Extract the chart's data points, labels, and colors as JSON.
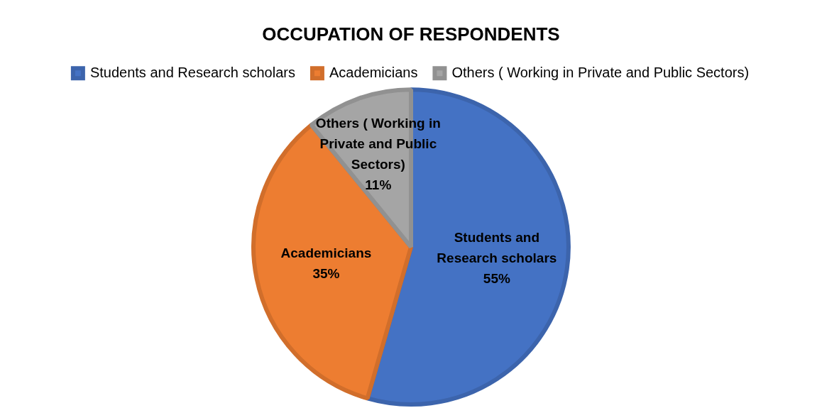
{
  "chart_data": {
    "type": "pie",
    "title": "OCCUPATION OF RESPONDENTS",
    "categories": [
      "Students and Research scholars",
      "Academicians",
      "Others ( Working in Private and Public Sectors)"
    ],
    "values": [
      55,
      35,
      11
    ],
    "value_labels": [
      "55%",
      "35%",
      "11%"
    ],
    "colors": [
      "#4472c4",
      "#ed7d31",
      "#a5a5a5"
    ],
    "legend": "top"
  }
}
